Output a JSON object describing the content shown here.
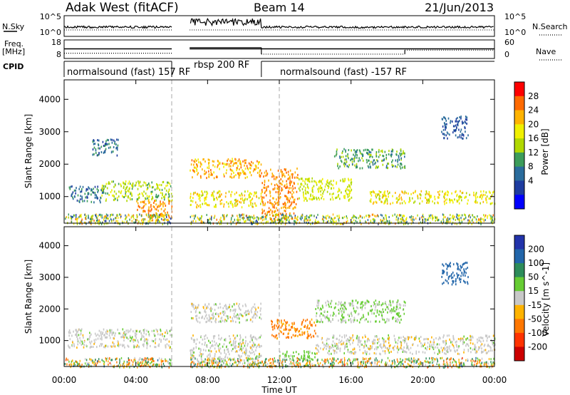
{
  "chart_data": {
    "type": "heatmap",
    "title": {
      "radar": "Adak West (fitACF)",
      "beam": "Beam 14",
      "date": "21/Jun/2013"
    },
    "xlabel": "Time UT",
    "xlim_hours": [
      0,
      24
    ],
    "x_ticks": [
      "00:00",
      "04:00",
      "08:00",
      "12:00",
      "16:00",
      "20:00",
      "00:00"
    ],
    "x_tick_hours": [
      0,
      4,
      8,
      12,
      16,
      20,
      24
    ],
    "data_gaps_hours": [
      [
        6.0,
        7.0
      ]
    ],
    "mode_boundaries_hours": [
      6.0,
      12.0
    ],
    "status_panels": {
      "sky": {
        "left_label": "N.Sky",
        "left_ticks": [
          "10^5",
          "10^0"
        ],
        "right_label": "N.Search",
        "right_ticks": [
          "10^5",
          "10^0"
        ]
      },
      "freq": {
        "left_label_line1": "Freq.",
        "left_label_line2": "[MHz]",
        "left_ticks": [
          "18",
          "8"
        ],
        "right_label": "Nave",
        "right_ticks": [
          "60",
          "0"
        ],
        "freq_mhz_segments": [
          {
            "start": 0,
            "end": 6,
            "value": 13.2
          },
          {
            "start": 7,
            "end": 24,
            "value": 13.2
          }
        ],
        "nave_segments": [
          {
            "start": 0,
            "end": 6,
            "value": 17
          },
          {
            "start": 7,
            "end": 11,
            "value": 35
          },
          {
            "start": 11,
            "end": 19,
            "value": 14
          },
          {
            "start": 19,
            "end": 24,
            "value": 27
          }
        ]
      },
      "cpid": {
        "label": "CPID",
        "segments": [
          {
            "start": 0,
            "end": 6,
            "text": "normalsound (fast) 157 RF"
          },
          {
            "start": 6,
            "end": 11,
            "text": "rbsp 200 RF"
          },
          {
            "start": 11,
            "end": 24,
            "text": "normalsound (fast) -157 RF"
          }
        ]
      }
    },
    "panels": [
      {
        "name": "power",
        "ylabel": "Slant Range [km]",
        "ylim": [
          180,
          4600
        ],
        "y_ticks": [
          1000,
          2000,
          3000,
          4000
        ],
        "colorbar_label": "Power [dB]",
        "colorbar_ticks": [
          "28",
          "24",
          "20",
          "16",
          "12",
          "8",
          "4"
        ],
        "colorbar_colors": [
          "#ff0000",
          "#ff6a00",
          "#ffb300",
          "#f0f000",
          "#b0d800",
          "#3c9c5a",
          "#2a6c9c",
          "#1e3ca0",
          "#0000ff"
        ]
      },
      {
        "name": "velocity",
        "ylabel": "Slant Range [km]",
        "ylim": [
          180,
          4600
        ],
        "y_ticks": [
          1000,
          2000,
          3000,
          4000
        ],
        "colorbar_label": "Velocity [m s^-1]",
        "colorbar_ticks": [
          "200",
          "100",
          "50",
          "15",
          "-15",
          "-50",
          "-100",
          "-200"
        ],
        "colorbar_colors": [
          "#2233aa",
          "#2266aa",
          "#2d8c5a",
          "#66cc33",
          "#c8c8c8",
          "#ffb300",
          "#ff7700",
          "#ff3300",
          "#cc0000"
        ]
      }
    ],
    "echo_regions": [
      {
        "panel": "power",
        "t": [
          0.2,
          2.2
        ],
        "r": [
          850,
          1350
        ],
        "level": 8
      },
      {
        "panel": "power",
        "t": [
          1.5,
          3.0
        ],
        "r": [
          2300,
          2800
        ],
        "level": 8
      },
      {
        "panel": "power",
        "t": [
          2.0,
          6.0
        ],
        "r": [
          900,
          1500
        ],
        "level": 16
      },
      {
        "panel": "power",
        "t": [
          4.0,
          6.0
        ],
        "r": [
          300,
          900
        ],
        "level": 26
      },
      {
        "panel": "power",
        "t": [
          7.0,
          11.0
        ],
        "r": [
          1600,
          2200
        ],
        "level": 24
      },
      {
        "panel": "power",
        "t": [
          7.0,
          11.0
        ],
        "r": [
          700,
          1200
        ],
        "level": 20
      },
      {
        "panel": "power",
        "t": [
          11.0,
          13.0
        ],
        "r": [
          300,
          1900
        ],
        "level": 26
      },
      {
        "panel": "power",
        "t": [
          13.0,
          16.0
        ],
        "r": [
          900,
          1600
        ],
        "level": 18
      },
      {
        "panel": "power",
        "t": [
          15.0,
          19.0
        ],
        "r": [
          1900,
          2500
        ],
        "level": 12
      },
      {
        "panel": "power",
        "t": [
          17.0,
          24.0
        ],
        "r": [
          800,
          1200
        ],
        "level": 20
      },
      {
        "panel": "power",
        "t": [
          21.0,
          22.5
        ],
        "r": [
          2800,
          3500
        ],
        "level": 6
      },
      {
        "panel": "velocity",
        "t": [
          0.2,
          6.0
        ],
        "r": [
          800,
          1400
        ],
        "level": 0
      },
      {
        "panel": "velocity",
        "t": [
          7.0,
          11.0
        ],
        "r": [
          1600,
          2200
        ],
        "level": 0
      },
      {
        "panel": "velocity",
        "t": [
          7.0,
          11.0
        ],
        "r": [
          300,
          1200
        ],
        "level": 0
      },
      {
        "panel": "velocity",
        "t": [
          11.5,
          14.0
        ],
        "r": [
          1100,
          1700
        ],
        "level": -60
      },
      {
        "panel": "velocity",
        "t": [
          12.0,
          14.0
        ],
        "r": [
          400,
          700
        ],
        "level": 30
      },
      {
        "panel": "velocity",
        "t": [
          14.0,
          19.0
        ],
        "r": [
          1600,
          2300
        ],
        "level": 20
      },
      {
        "panel": "velocity",
        "t": [
          14.0,
          24.0
        ],
        "r": [
          600,
          1200
        ],
        "level": 0
      },
      {
        "panel": "velocity",
        "t": [
          21.0,
          22.5
        ],
        "r": [
          2800,
          3500
        ],
        "level": 150
      }
    ]
  }
}
